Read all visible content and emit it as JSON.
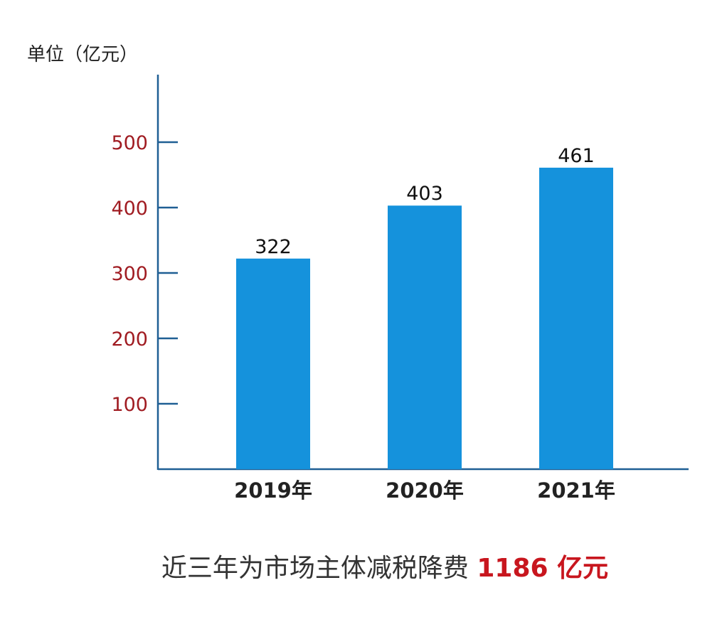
{
  "chart_data": {
    "type": "bar",
    "unit_label": "单位（亿元）",
    "categories": [
      "2019年",
      "2020年",
      "2021年"
    ],
    "values": [
      322,
      403,
      461
    ],
    "data_labels": [
      "322",
      "403",
      "461"
    ],
    "yticks": [
      100,
      200,
      300,
      400,
      500
    ],
    "ylim": [
      0,
      600
    ],
    "grid": false,
    "colors": {
      "bar": "#1592dc",
      "axis": "#1f5f94",
      "ytick_label": "#a01c22",
      "category_label": "#222222",
      "data_label": "#111111"
    }
  },
  "caption": {
    "text": "近三年为市场主体减税降费",
    "highlight": "1186 亿元",
    "highlight_color": "#c8161e"
  }
}
